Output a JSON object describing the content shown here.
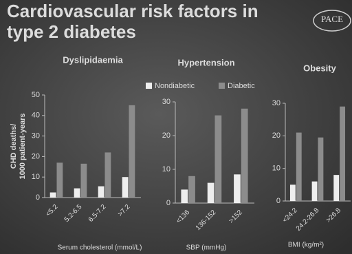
{
  "title": [
    "Cardiovascular risk factors in",
    "type 2 diabetes"
  ],
  "logo": "PACE",
  "chart_data": [
    {
      "type": "bar",
      "title": "Dyslipidaemia",
      "ylabel": [
        "CHD deaths/",
        "1000 patient-years"
      ],
      "xlabel": "Serum cholesterol (mmol/L)",
      "categories": [
        "<5.2",
        "5.2-6.5",
        "6.5-7.2",
        ">7.2"
      ],
      "series": [
        {
          "color": "#eeeeee",
          "values": [
            2.5,
            4.5,
            5.5,
            10
          ]
        },
        {
          "color": "#8c8c8c",
          "values": [
            17,
            16.5,
            22,
            45
          ]
        }
      ],
      "ylim": [
        0,
        50
      ],
      "yticks": [
        0,
        10,
        20,
        30,
        40,
        50
      ]
    },
    {
      "type": "bar",
      "title": "Hypertension",
      "xlabel": "SBP (mmHg)",
      "categories": [
        "<136",
        "136-152",
        ">152"
      ],
      "series": [
        {
          "name": "Nondiabetic",
          "color": "#eeeeee",
          "values": [
            4,
            6,
            8.5
          ]
        },
        {
          "name": "Diabetic",
          "color": "#8c8c8c",
          "values": [
            8,
            26,
            28
          ]
        }
      ],
      "ylim": [
        0,
        30
      ],
      "yticks": [
        0,
        10,
        20,
        30
      ],
      "legend": "top"
    },
    {
      "type": "bar",
      "title": "Obesity",
      "xlabel": "BMI (kg/m²)",
      "categories": [
        "<24.2",
        "24.2-26.8",
        ">26.8"
      ],
      "series": [
        {
          "color": "#eeeeee",
          "values": [
            5,
            6,
            8
          ]
        },
        {
          "color": "#8c8c8c",
          "values": [
            21,
            19.5,
            29
          ]
        }
      ],
      "ylim": [
        0,
        30
      ],
      "yticks": [
        0,
        10,
        20,
        30
      ]
    }
  ]
}
